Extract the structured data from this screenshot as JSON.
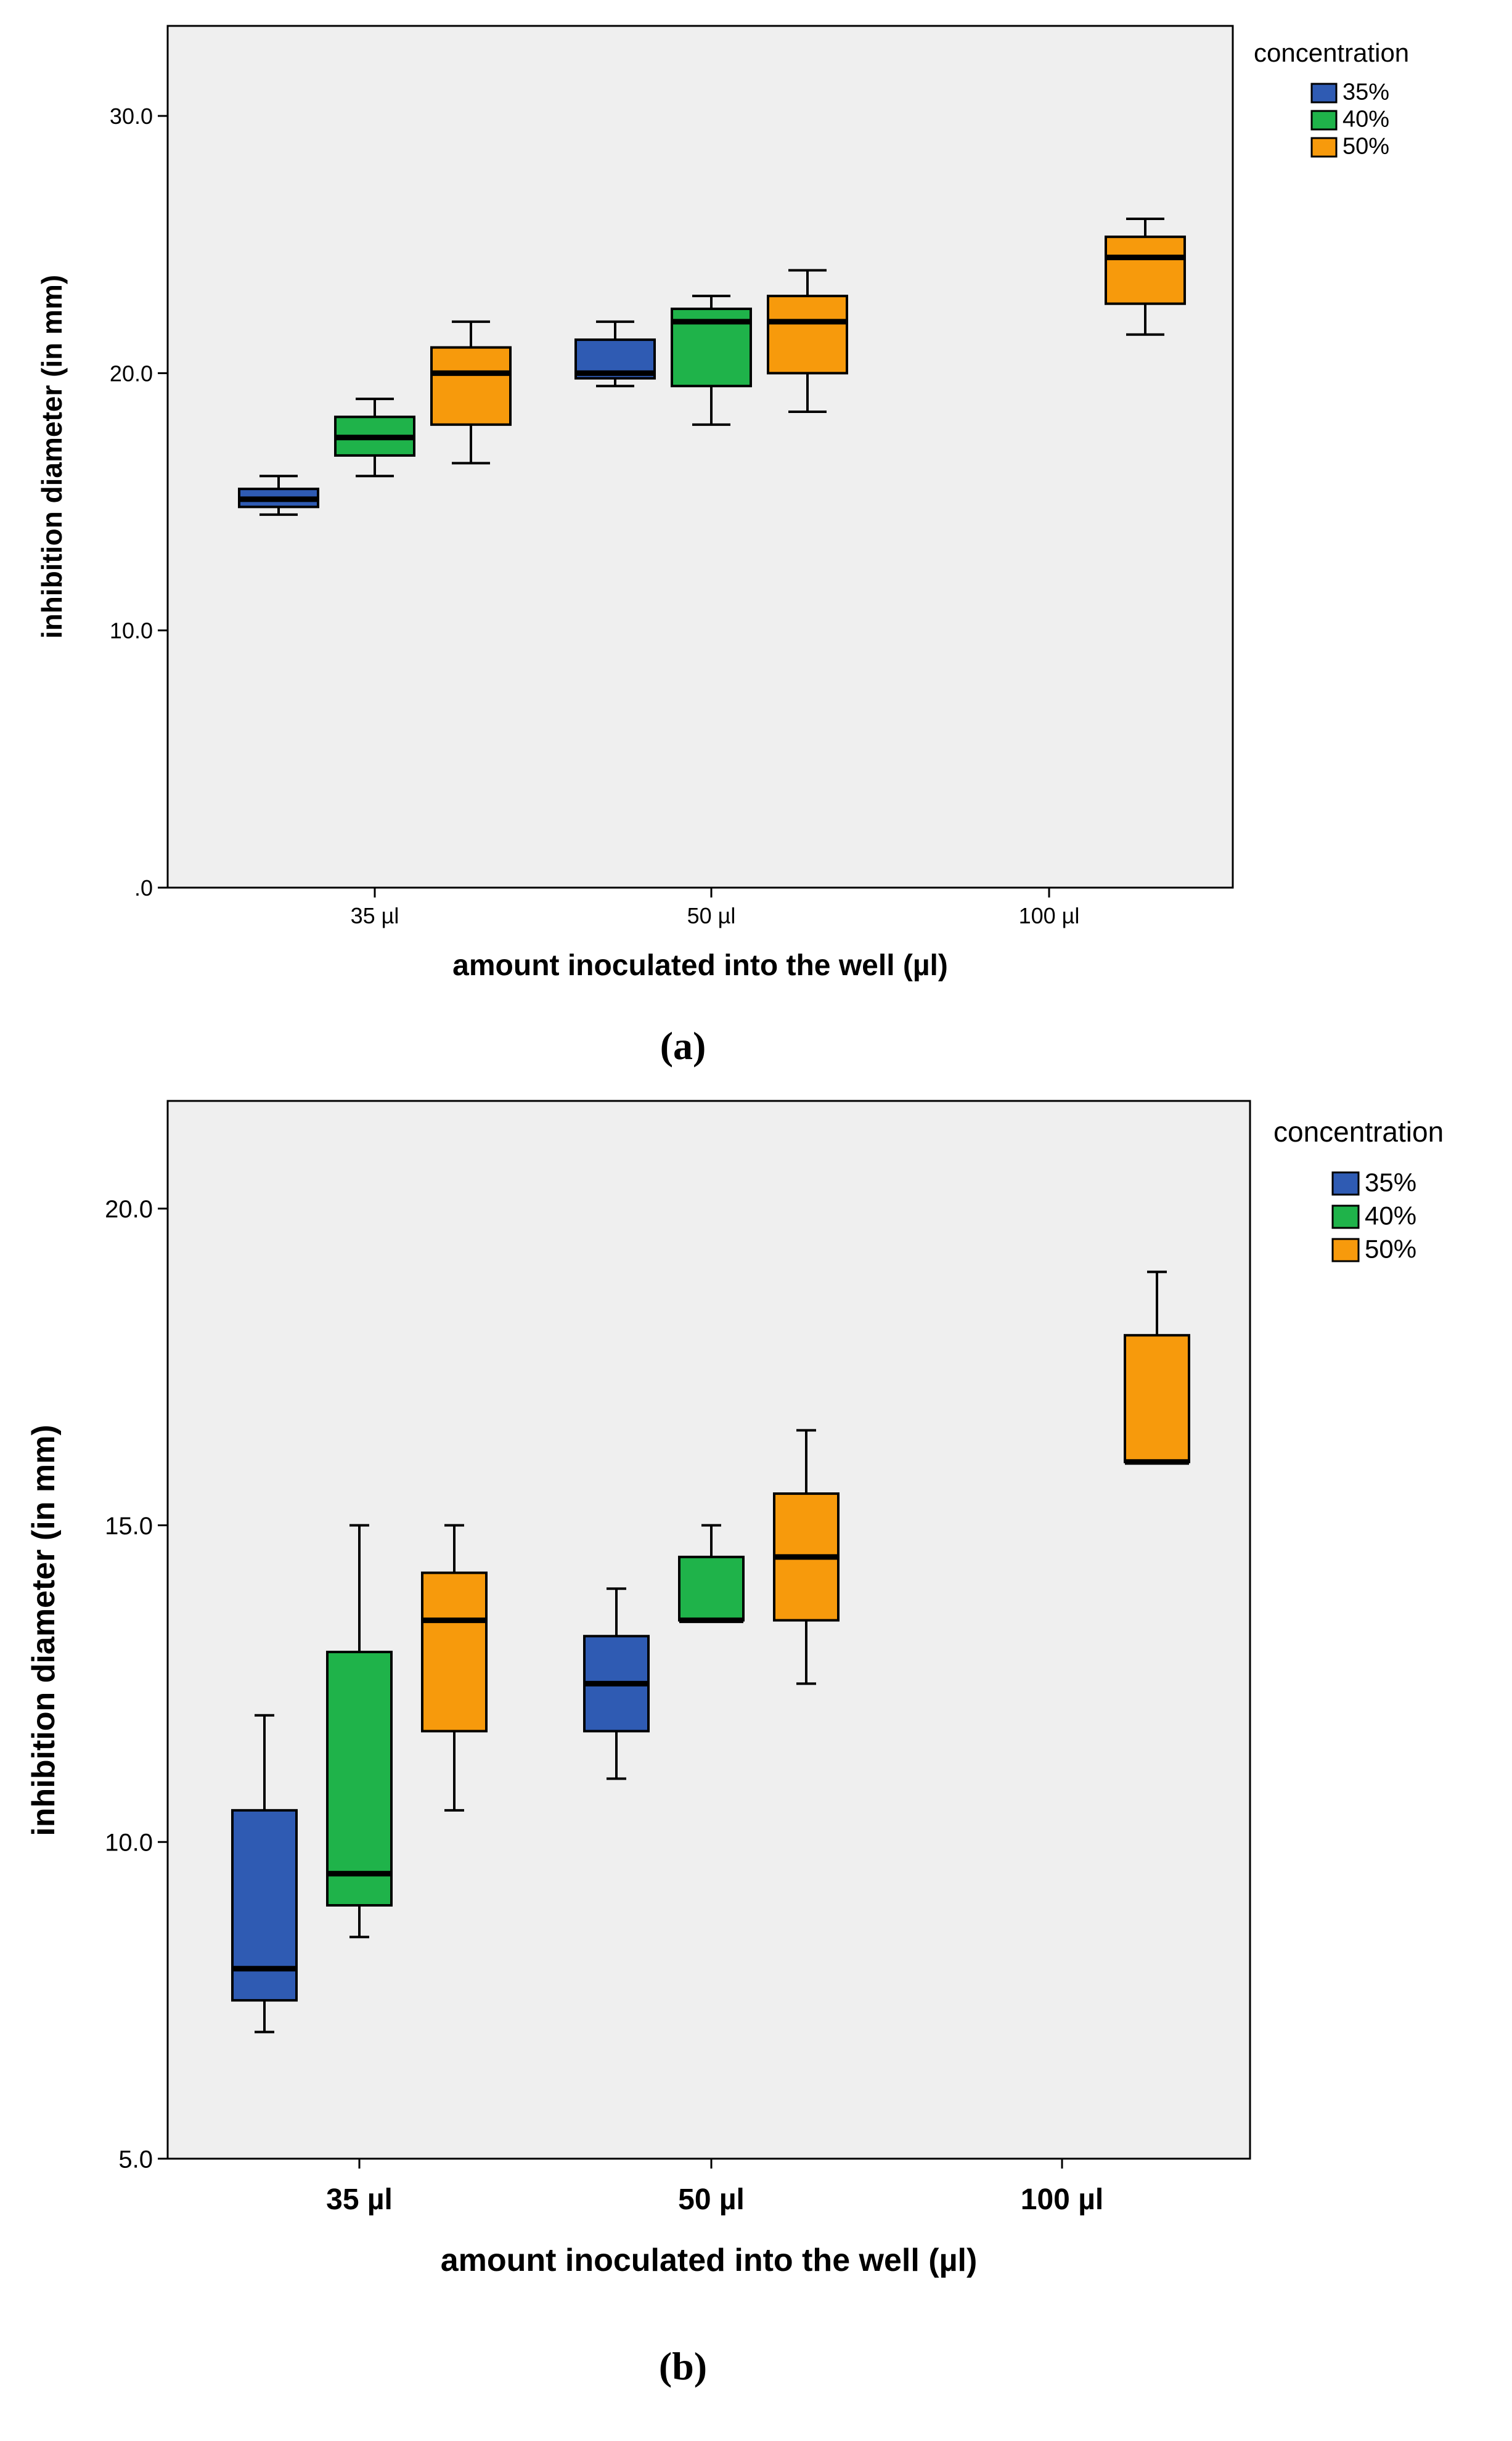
{
  "chart_data": [
    {
      "id": "a",
      "type": "box",
      "caption": "(a)",
      "xlabel": "amount inoculated into the well (µl)",
      "ylabel": "inhibition diameter (in mm)",
      "ylim": [
        0,
        33.5
      ],
      "yticks": [
        {
          "value": 0,
          "label": ".0"
        },
        {
          "value": 10,
          "label": "10.0"
        },
        {
          "value": 20,
          "label": "20.0"
        },
        {
          "value": 30,
          "label": "30.0"
        }
      ],
      "categories": [
        "35 µl",
        "50 µl",
        "100 µl"
      ],
      "legend": {
        "title": "concentration",
        "position": "right",
        "entries": [
          {
            "label": "35%",
            "color": "#2f5bb3"
          },
          {
            "label": "40%",
            "color": "#1fb34a"
          },
          {
            "label": "50%",
            "color": "#f79a0c"
          }
        ]
      },
      "boxes": [
        {
          "category": "35 µl",
          "group": "35%",
          "min": 14.5,
          "q1": 14.8,
          "median": 15.1,
          "q3": 15.5,
          "max": 16.0
        },
        {
          "category": "35 µl",
          "group": "40%",
          "min": 16.0,
          "q1": 16.8,
          "median": 17.5,
          "q3": 18.3,
          "max": 19.0
        },
        {
          "category": "35 µl",
          "group": "50%",
          "min": 16.5,
          "q1": 18.0,
          "median": 20.0,
          "q3": 21.0,
          "max": 22.0
        },
        {
          "category": "50 µl",
          "group": "35%",
          "min": 19.5,
          "q1": 19.8,
          "median": 20.0,
          "q3": 21.3,
          "max": 22.0
        },
        {
          "category": "50 µl",
          "group": "40%",
          "min": 18.0,
          "q1": 19.5,
          "median": 22.0,
          "q3": 22.5,
          "max": 23.0
        },
        {
          "category": "50 µl",
          "group": "50%",
          "min": 18.5,
          "q1": 20.0,
          "median": 22.0,
          "q3": 23.0,
          "max": 24.0
        },
        {
          "category": "100 µl",
          "group": "50%",
          "min": 21.5,
          "q1": 22.7,
          "median": 24.5,
          "q3": 25.3,
          "max": 26.0
        }
      ]
    },
    {
      "id": "b",
      "type": "box",
      "caption": "(b)",
      "xlabel": "amount inoculated into the well (µl)",
      "ylabel": "inhibition diameter (in mm)",
      "ylim": [
        5,
        21.7
      ],
      "yticks": [
        {
          "value": 5,
          "label": "5.0"
        },
        {
          "value": 10,
          "label": "10.0"
        },
        {
          "value": 15,
          "label": "15.0"
        },
        {
          "value": 20,
          "label": "20.0"
        }
      ],
      "categories": [
        "35 µl",
        "50 µl",
        "100 µl"
      ],
      "legend": {
        "title": "concentration",
        "position": "right",
        "entries": [
          {
            "label": "35%",
            "color": "#2f5bb3"
          },
          {
            "label": "40%",
            "color": "#1fb34a"
          },
          {
            "label": "50%",
            "color": "#f79a0c"
          }
        ]
      },
      "boxes": [
        {
          "category": "35 µl",
          "group": "35%",
          "min": 7.0,
          "q1": 7.5,
          "median": 8.0,
          "q3": 10.5,
          "max": 12.0
        },
        {
          "category": "35 µl",
          "group": "40%",
          "min": 8.5,
          "q1": 9.0,
          "median": 9.5,
          "q3": 13.0,
          "max": 15.0
        },
        {
          "category": "35 µl",
          "group": "50%",
          "min": 10.5,
          "q1": 11.75,
          "median": 13.5,
          "q3": 14.25,
          "max": 15.0
        },
        {
          "category": "50 µl",
          "group": "35%",
          "min": 11.0,
          "q1": 11.75,
          "median": 12.5,
          "q3": 13.25,
          "max": 14.0
        },
        {
          "category": "50 µl",
          "group": "40%",
          "min": 13.5,
          "q1": 13.5,
          "median": 13.5,
          "q3": 14.5,
          "max": 15.0
        },
        {
          "category": "50 µl",
          "group": "50%",
          "min": 12.5,
          "q1": 13.5,
          "median": 14.5,
          "q3": 15.5,
          "max": 16.5
        },
        {
          "category": "100 µl",
          "group": "50%",
          "min": 16.0,
          "q1": 16.0,
          "median": 16.0,
          "q3": 18.0,
          "max": 19.0
        }
      ]
    }
  ]
}
